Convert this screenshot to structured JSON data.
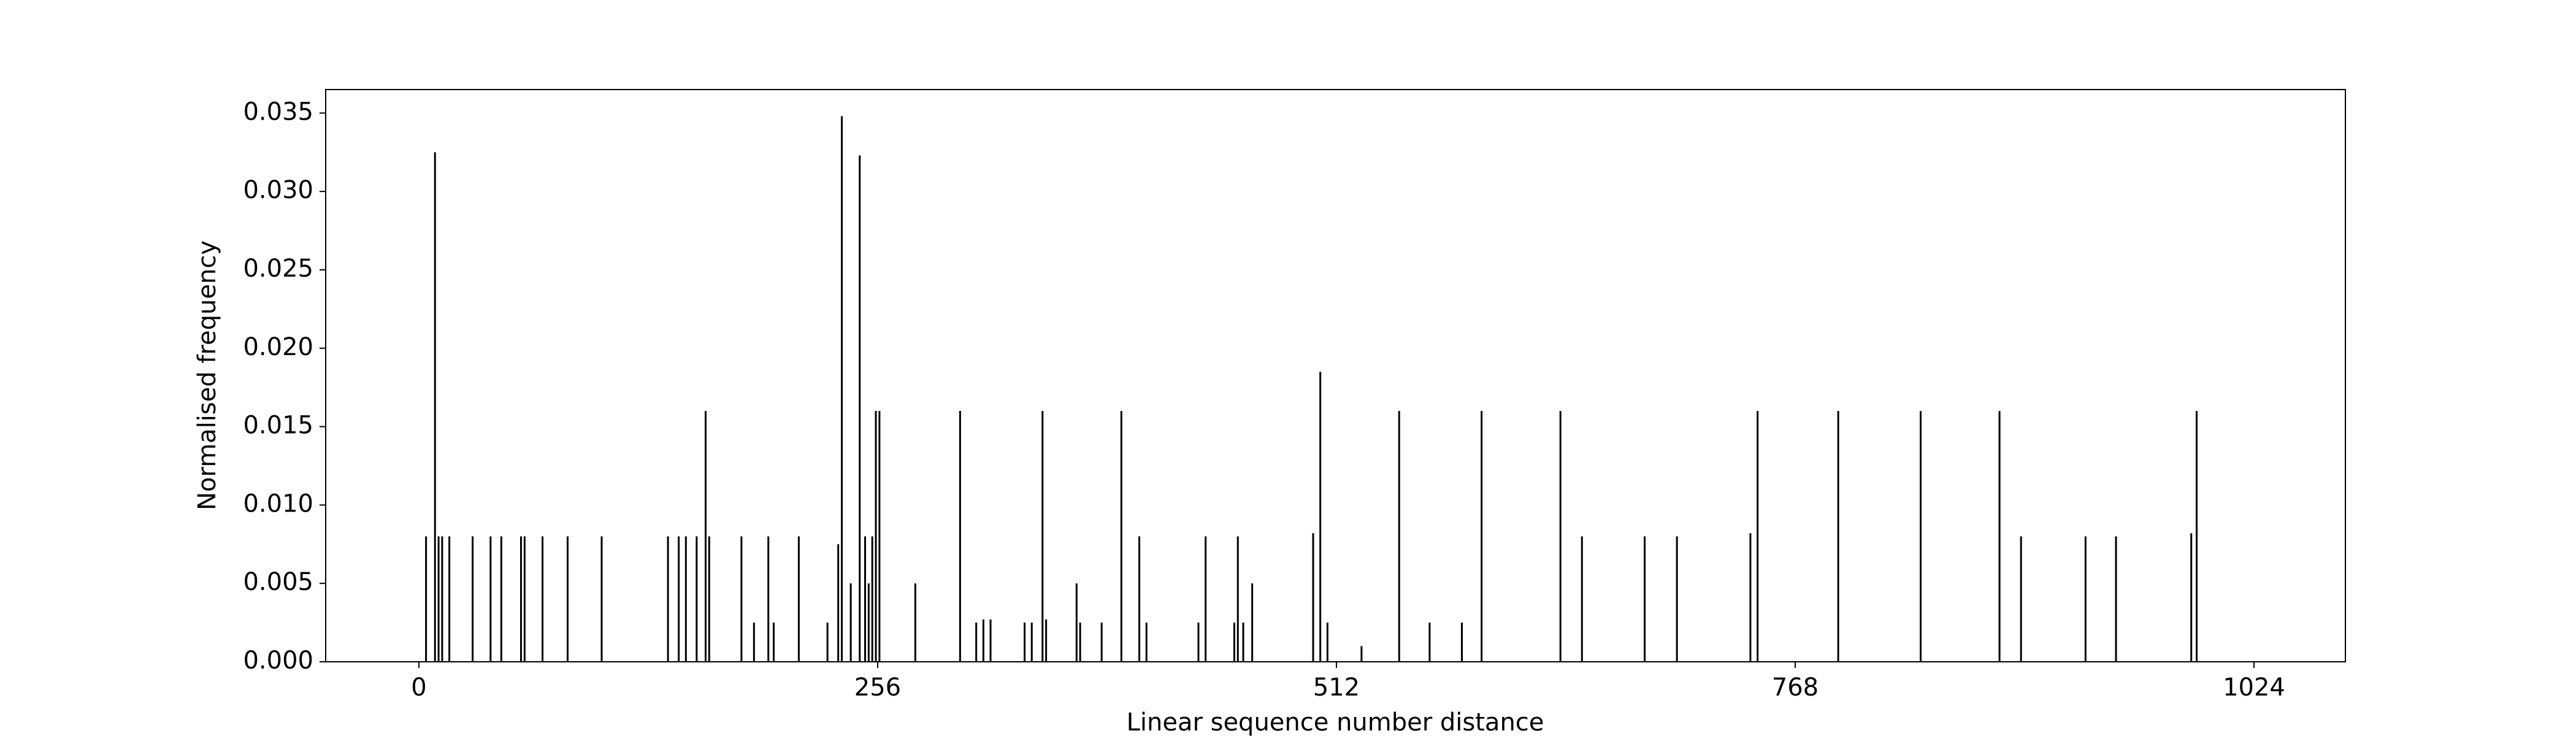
{
  "chart_data": {
    "type": "bar",
    "xlabel": "Linear sequence number distance",
    "ylabel": "Normalised frequency",
    "color": "#000000",
    "x": [
      4,
      9,
      11,
      13,
      17,
      30,
      40,
      46,
      57,
      59,
      69,
      83,
      102,
      139,
      145,
      149,
      155,
      160,
      162,
      180,
      187,
      195,
      198,
      212,
      228,
      234,
      236,
      241,
      246,
      249,
      251,
      253,
      255,
      257,
      277,
      302,
      311,
      315,
      319,
      338,
      342,
      348,
      350,
      367,
      369,
      381,
      392,
      402,
      406,
      435,
      439,
      455,
      457,
      460,
      465,
      499,
      503,
      507,
      526,
      547,
      564,
      582,
      593,
      637,
      649,
      684,
      702,
      743,
      747,
      792,
      838,
      882,
      894,
      930,
      947,
      989,
      992
    ],
    "values": [
      0.008,
      0.0325,
      0.008,
      0.008,
      0.008,
      0.008,
      0.008,
      0.008,
      0.008,
      0.008,
      0.008,
      0.008,
      0.008,
      0.008,
      0.008,
      0.008,
      0.008,
      0.016,
      0.008,
      0.008,
      0.0025,
      0.008,
      0.0025,
      0.008,
      0.0025,
      0.0075,
      0.0348,
      0.005,
      0.0323,
      0.008,
      0.005,
      0.008,
      0.016,
      0.016,
      0.005,
      0.016,
      0.0025,
      0.0027,
      0.0027,
      0.0025,
      0.0025,
      0.016,
      0.0027,
      0.005,
      0.0025,
      0.0025,
      0.016,
      0.008,
      0.0025,
      0.0025,
      0.008,
      0.0025,
      0.008,
      0.0025,
      0.005,
      0.0082,
      0.0185,
      0.0025,
      0.001,
      0.016,
      0.0025,
      0.0025,
      0.016,
      0.016,
      0.008,
      0.008,
      0.008,
      0.0082,
      0.016,
      0.016,
      0.016,
      0.016,
      0.008,
      0.008,
      0.008,
      0.0082,
      0.016
    ],
    "xlim": [
      -52,
      1075
    ],
    "xticks": [
      0,
      256,
      512,
      768,
      1024
    ],
    "ylim": [
      0,
      0.0365
    ],
    "yticks": [
      {
        "value": 0,
        "label": "0.000"
      },
      0.005,
      {
        "value": 0.01,
        "label": "0.010"
      },
      0.015,
      {
        "value": 0.02,
        "label": "0.020"
      },
      0.025,
      {
        "value": 0.03,
        "label": "0.030"
      },
      0.035
    ]
  }
}
